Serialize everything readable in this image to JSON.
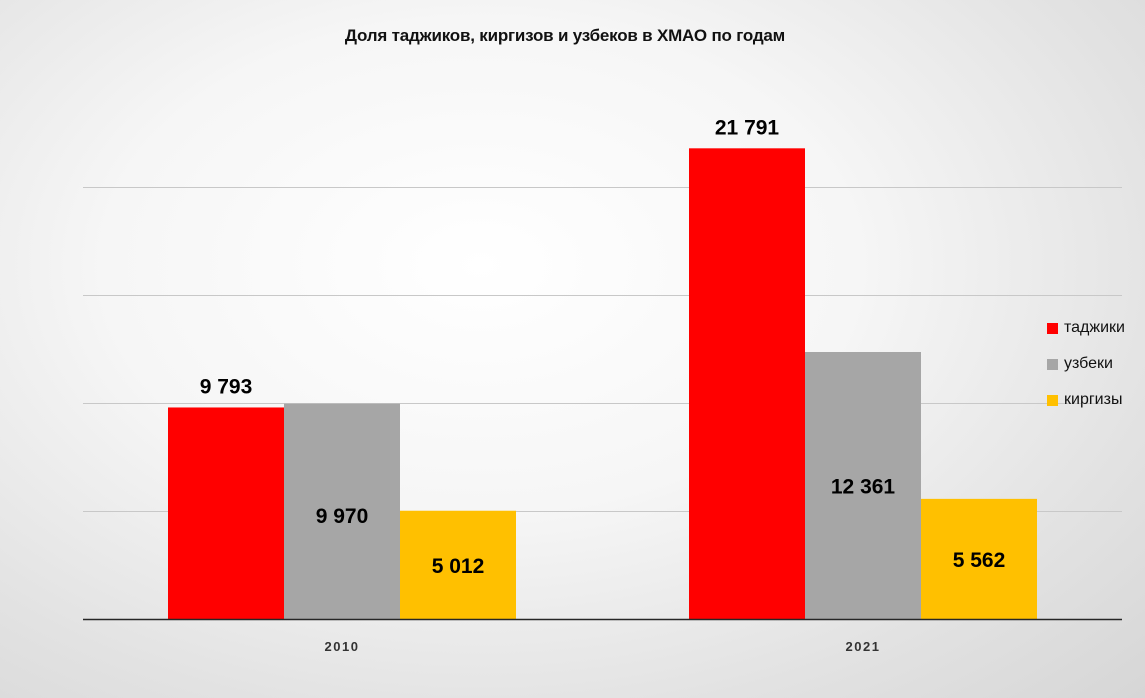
{
  "chart_data": {
    "type": "bar",
    "title": "Доля таджиков, киргизов и узбеков в ХМАО по годам",
    "categories": [
      "2010",
      "2021"
    ],
    "series": [
      {
        "name": "таджики",
        "color": "#ff0000",
        "values": [
          9793,
          21791
        ],
        "labels": [
          "9 793",
          "21 791"
        ]
      },
      {
        "name": "узбеки",
        "color": "#a6a6a6",
        "values": [
          9970,
          12361
        ],
        "labels": [
          "9 970",
          "12 361"
        ]
      },
      {
        "name": "киргизы",
        "color": "#ffc000",
        "values": [
          5012,
          5562
        ],
        "labels": [
          "5 012",
          "5 562"
        ]
      }
    ],
    "ylim": [
      0,
      25000
    ],
    "grid": true,
    "legend_position": "right"
  }
}
